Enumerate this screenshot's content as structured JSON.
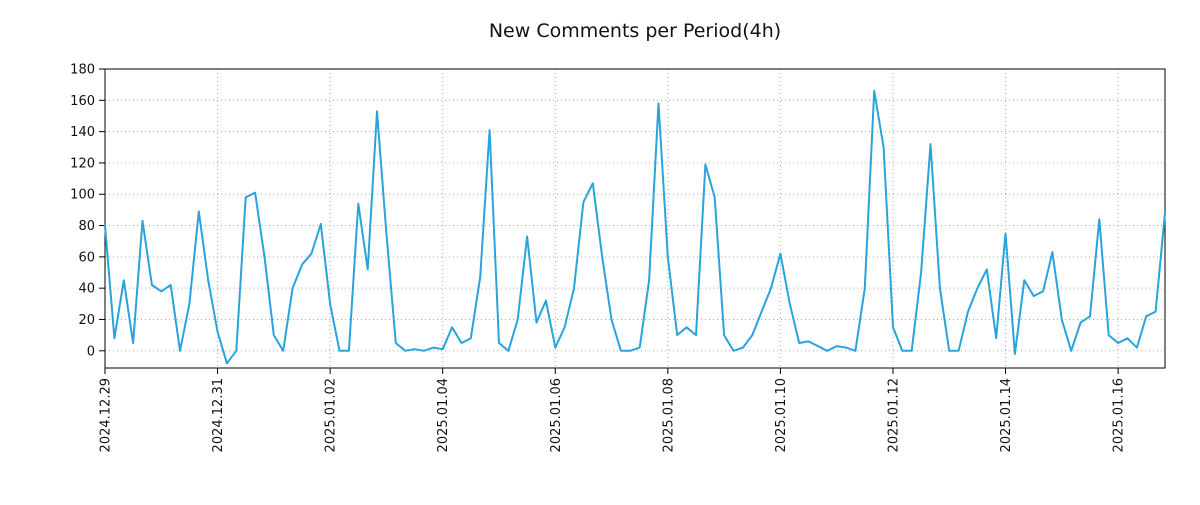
{
  "chart_data": {
    "type": "line",
    "title": "New Comments per Period(4h)",
    "series_name": "new_comments",
    "series_color": "#29a3dd",
    "interval_hours": 4,
    "x_start": "2024.12.29 00:00",
    "ylim": [
      -11,
      180
    ],
    "yticks": [
      0,
      20,
      40,
      60,
      80,
      100,
      120,
      140,
      160,
      180
    ],
    "xtick_labels": [
      "2024.12.29",
      "2024.12.31",
      "2025.01.02",
      "2025.01.04",
      "2025.01.06",
      "2025.01.08",
      "2025.01.10",
      "2025.01.12",
      "2025.01.14",
      "2025.01.16"
    ],
    "xtick_indices": [
      0,
      12,
      24,
      36,
      48,
      60,
      72,
      84,
      96,
      108
    ],
    "grid": true,
    "legend": false,
    "values": [
      80,
      8,
      45,
      5,
      83,
      42,
      38,
      42,
      0,
      30,
      89,
      45,
      12,
      -8,
      0,
      98,
      101,
      60,
      10,
      0,
      40,
      55,
      62,
      81,
      30,
      0,
      0,
      94,
      52,
      153,
      75,
      5,
      0,
      1,
      0,
      2,
      1,
      15,
      5,
      8,
      47,
      141,
      5,
      0,
      20,
      73,
      18,
      32,
      2,
      15,
      40,
      95,
      107,
      60,
      20,
      0,
      0,
      2,
      45,
      158,
      60,
      10,
      15,
      10,
      119,
      98,
      10,
      0,
      2,
      10,
      25,
      40,
      62,
      30,
      5,
      6,
      3,
      0,
      3,
      2,
      0,
      40,
      166,
      130,
      15,
      0,
      0,
      50,
      132,
      40,
      0,
      0,
      25,
      40,
      52,
      8,
      75,
      -2,
      45,
      35,
      38,
      63,
      20,
      0,
      18,
      22,
      84,
      10,
      5,
      8,
      2,
      22,
      25,
      88
    ]
  }
}
